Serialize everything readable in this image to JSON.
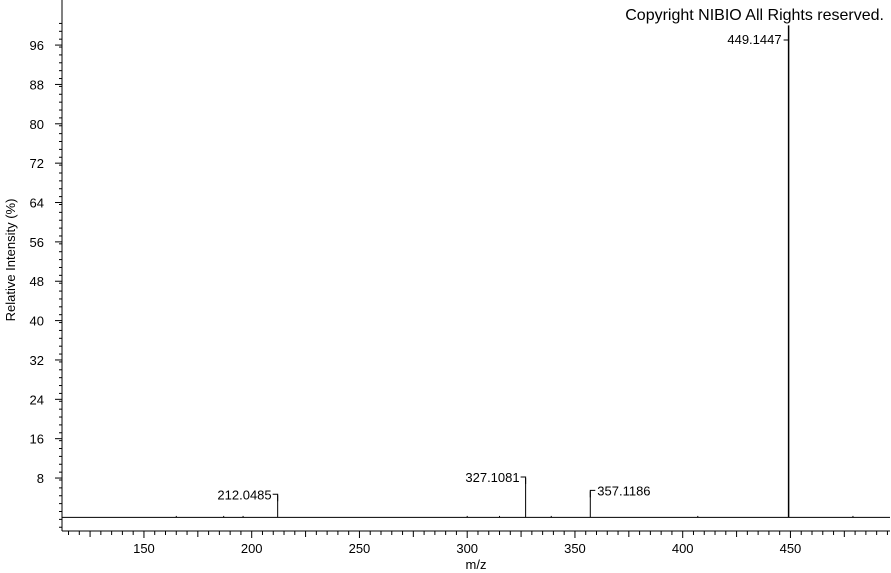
{
  "copyright": "Copyright NIBIO All Rights reserved.",
  "chart_data": {
    "type": "bar",
    "subtype": "mass-spectrum-stick",
    "title": "",
    "xlabel": "m/z",
    "ylabel": "Relative Intensity (%)",
    "xlim": [
      112,
      496
    ],
    "ylim": [
      -3,
      100
    ],
    "x_ticks": [
      150,
      200,
      250,
      300,
      350,
      400,
      450
    ],
    "y_ticks": [
      8,
      16,
      24,
      32,
      40,
      48,
      56,
      64,
      72,
      80,
      88,
      96
    ],
    "grid": false,
    "peaks": [
      {
        "mz": 165,
        "intensity": 0.3,
        "label": ""
      },
      {
        "mz": 187,
        "intensity": 0.3,
        "label": ""
      },
      {
        "mz": 196,
        "intensity": 0.3,
        "label": ""
      },
      {
        "mz": 212.0485,
        "intensity": 4.5,
        "label": "212.0485",
        "label_side": "left"
      },
      {
        "mz": 300,
        "intensity": 0.3,
        "label": ""
      },
      {
        "mz": 315,
        "intensity": 0.3,
        "label": ""
      },
      {
        "mz": 327.1081,
        "intensity": 8.0,
        "label": "327.1081",
        "label_side": "left"
      },
      {
        "mz": 339,
        "intensity": 0.3,
        "label": ""
      },
      {
        "mz": 357.1186,
        "intensity": 5.3,
        "label": "357.1186",
        "label_side": "right"
      },
      {
        "mz": 407,
        "intensity": 0.3,
        "label": ""
      },
      {
        "mz": 449.1447,
        "intensity": 100,
        "label": "449.1447",
        "label_side": "top"
      },
      {
        "mz": 479,
        "intensity": 0.3,
        "label": ""
      }
    ]
  }
}
